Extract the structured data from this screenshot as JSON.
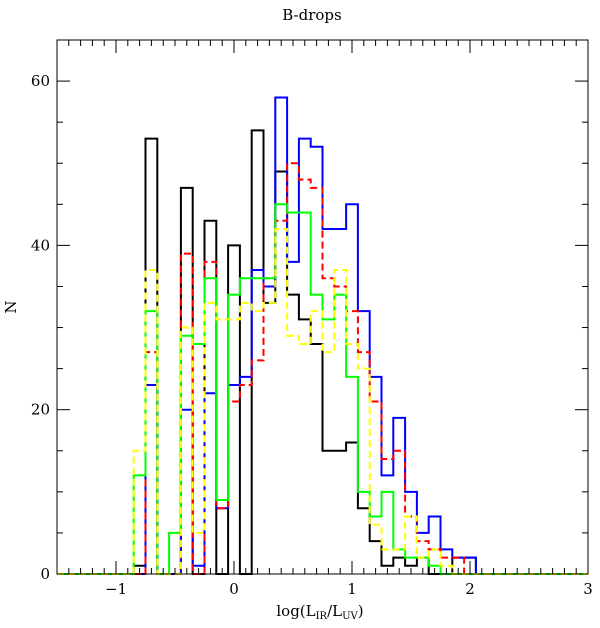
{
  "chart_data": {
    "type": "histogram",
    "title": "B-drops",
    "xlabel": "log(L_IR/L_UV)",
    "xlabel_parts": {
      "main": "log(L",
      "sub1": "IR",
      "mid": "/L",
      "sub2": "UV",
      "end": ")"
    },
    "ylabel": "N",
    "xlim": [
      -1.5,
      3.0
    ],
    "ylim": [
      0,
      65
    ],
    "x_ticks": [
      -1,
      0,
      1,
      2,
      3
    ],
    "y_ticks": [
      0,
      20,
      40,
      60
    ],
    "bin_edges": [
      -0.85,
      -0.75,
      -0.65,
      -0.55,
      -0.45,
      -0.35,
      -0.25,
      -0.15,
      -0.05,
      0.05,
      0.15,
      0.25,
      0.35,
      0.45,
      0.55,
      0.65,
      0.75,
      0.85,
      0.95,
      1.05,
      1.15,
      1.25,
      1.35,
      1.45,
      1.55,
      1.65,
      1.75,
      1.85,
      1.95,
      2.05,
      2.15
    ],
    "series": [
      {
        "name": "black",
        "color": "#000000",
        "dash": "solid",
        "values": [
          1,
          53,
          0,
          0,
          47,
          0,
          43,
          0,
          40,
          0,
          54,
          33,
          49,
          34,
          31,
          28,
          15,
          15,
          16,
          8,
          4,
          1,
          2,
          1,
          2,
          0,
          0,
          2,
          2,
          0
        ]
      },
      {
        "name": "blue",
        "color": "#0000ff",
        "dash": "solid",
        "values": [
          0,
          23,
          0,
          0,
          20,
          1,
          22,
          8,
          23,
          24,
          37,
          35,
          58,
          38,
          53,
          52,
          42,
          42,
          45,
          32,
          24,
          12,
          19,
          10,
          5,
          7,
          3,
          2,
          2,
          0
        ]
      },
      {
        "name": "red",
        "color": "#ff0000",
        "dash": "dashed",
        "values": [
          0,
          27,
          0,
          0,
          39,
          0,
          38,
          8,
          21,
          23,
          26,
          36,
          43,
          50,
          48,
          47,
          36,
          35,
          32,
          27,
          21,
          14,
          15,
          7,
          4,
          3,
          2,
          2,
          0,
          0
        ]
      },
      {
        "name": "green",
        "color": "#00ff00",
        "dash": "solid",
        "values": [
          12,
          32,
          0,
          5,
          29,
          28,
          36,
          9,
          34,
          36,
          36,
          36,
          45,
          44,
          44,
          34,
          31,
          34,
          24,
          10,
          7,
          10,
          3,
          2,
          2,
          1,
          0,
          0,
          0,
          0
        ]
      },
      {
        "name": "yellow",
        "color": "#ffff00",
        "dash": "dashed",
        "values": [
          15,
          37,
          0,
          0,
          30,
          5,
          33,
          31,
          31,
          33,
          32,
          33,
          42,
          29,
          28,
          32,
          27,
          37,
          28,
          25,
          6,
          3,
          3,
          7,
          2,
          3,
          1,
          0,
          0,
          0
        ]
      }
    ]
  }
}
